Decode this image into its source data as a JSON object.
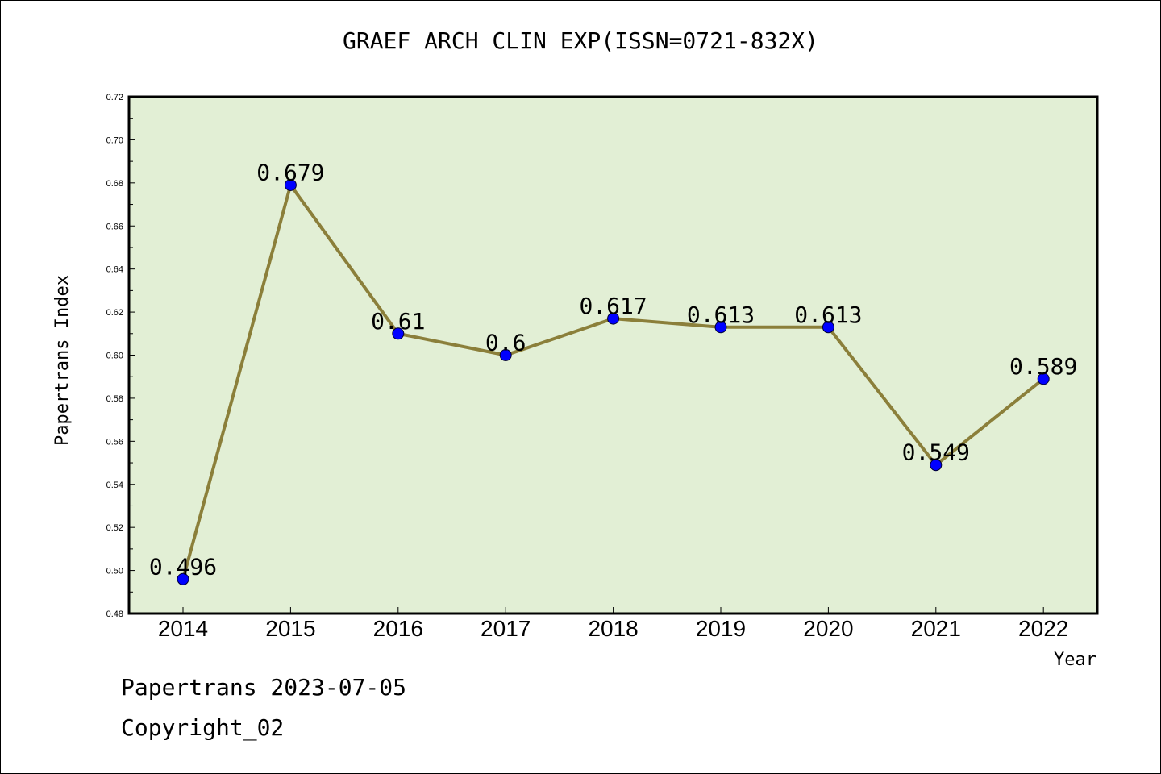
{
  "chart_data": {
    "type": "line",
    "title": "GRAEF ARCH CLIN EXP(ISSN=0721-832X)",
    "xlabel": "Year",
    "ylabel": "Papertrans Index",
    "categories": [
      "2014",
      "2015",
      "2016",
      "2017",
      "2018",
      "2019",
      "2020",
      "2021",
      "2022"
    ],
    "values": [
      0.496,
      0.679,
      0.61,
      0.6,
      0.617,
      0.613,
      0.613,
      0.549,
      0.589
    ],
    "data_labels": [
      "0.496",
      "0.679",
      "0.61",
      "0.6",
      "0.617",
      "0.613",
      "0.613",
      "0.549",
      "0.589"
    ],
    "ylim": [
      0.48,
      0.72
    ],
    "yticks": [
      "0.48",
      "0.50",
      "0.52",
      "0.54",
      "0.56",
      "0.58",
      "0.60",
      "0.62",
      "0.64",
      "0.66",
      "0.68",
      "0.70",
      "0.72"
    ],
    "grid": false,
    "colors": {
      "plot_background": "#e2efd5",
      "line": "#8b7f3a",
      "marker": "#0000ff"
    }
  },
  "footer": {
    "line1": "Papertrans 2023-07-05",
    "line2": "Copyright_02"
  }
}
